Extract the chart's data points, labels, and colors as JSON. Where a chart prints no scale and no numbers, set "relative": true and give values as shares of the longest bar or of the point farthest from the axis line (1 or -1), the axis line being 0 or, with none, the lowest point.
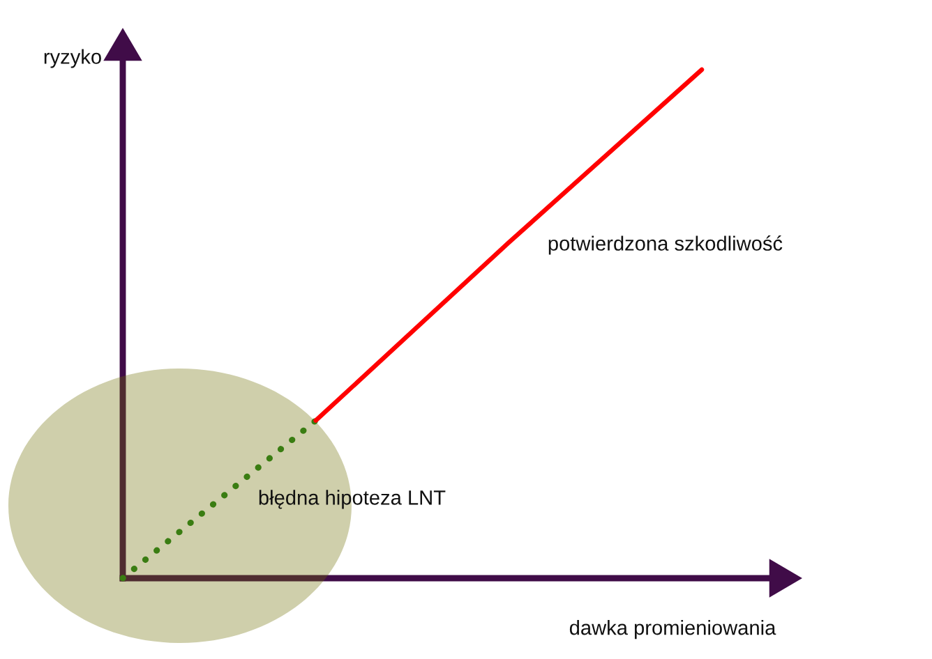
{
  "chart_data": {
    "type": "line",
    "relative": true,
    "xlabel": "dawka promieniowania",
    "ylabel": "ryzyko",
    "categories": [
      null,
      null,
      null,
      null
    ],
    "series": [
      {
        "name": "błędna hipoteza LNT",
        "color": "#3a7d12",
        "line_style": "dotted",
        "values": [
          0,
          0.31,
          null,
          null
        ]
      },
      {
        "name": "potwierdzona szkodliwość",
        "color": "#ff0000",
        "line_style": "solid",
        "values": [
          null,
          0.31,
          0.66,
          1
        ]
      }
    ]
  }
}
